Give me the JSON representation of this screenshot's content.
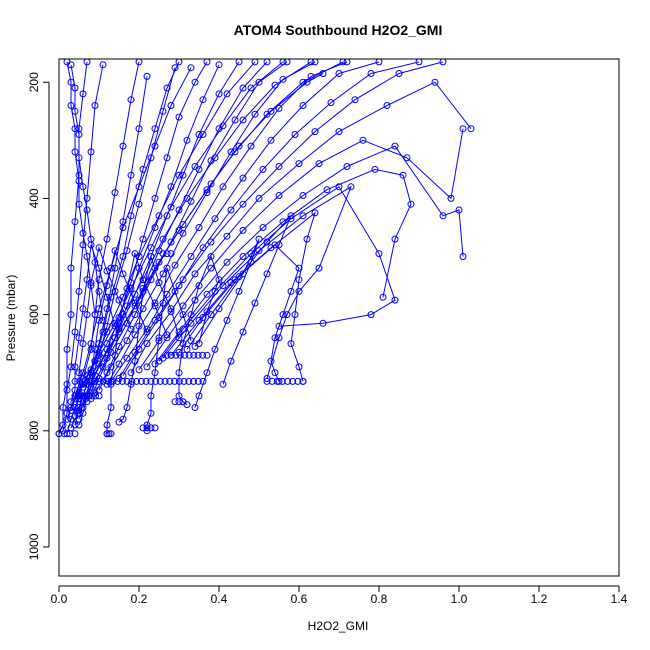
{
  "chart_data": {
    "type": "scatter",
    "title": "ATOM4 Southbound H2O2_GMI",
    "xlabel": "H2O2_GMI",
    "ylabel": "Pressure (mbar)",
    "xlim": [
      0,
      1.4
    ],
    "ylim": [
      1050,
      160
    ],
    "y_axis_inverted": true,
    "grid": false,
    "legend": "none",
    "x_ticks": [
      0.0,
      0.2,
      0.4,
      0.6,
      0.8,
      1.0,
      1.2,
      1.4
    ],
    "x_tick_labels": [
      "0.0",
      "0.2",
      "0.4",
      "0.6",
      "0.8",
      "1.0",
      "1.2",
      "1.4"
    ],
    "y_ticks": [
      200,
      400,
      600,
      800,
      1000
    ],
    "y_tick_labels": [
      "200",
      "400",
      "600",
      "800",
      "1000"
    ],
    "marker": "open-circle",
    "connect_points": true,
    "color": "#0000ff",
    "profiles": [
      {
        "x": [
          0.0,
          0.01,
          0.01,
          0.02,
          0.02,
          0.03,
          0.03,
          0.04,
          0.05,
          0.05,
          0.06,
          0.07
        ],
        "y": [
          805,
          790,
          760,
          720,
          660,
          600,
          520,
          440,
          360,
          280,
          220,
          165
        ]
      },
      {
        "x": [
          0.01,
          0.02,
          0.02,
          0.03,
          0.04,
          0.05,
          0.06,
          0.07,
          0.08,
          0.09,
          0.11
        ],
        "y": [
          800,
          770,
          730,
          690,
          630,
          560,
          480,
          400,
          320,
          240,
          170
        ]
      },
      {
        "x": [
          0.02,
          0.03,
          0.05,
          0.06,
          0.08,
          0.09,
          0.1,
          0.12,
          0.14,
          0.16,
          0.18,
          0.2
        ],
        "y": [
          805,
          780,
          745,
          710,
          660,
          600,
          540,
          470,
          390,
          310,
          230,
          165
        ]
      },
      {
        "x": [
          0.03,
          0.05,
          0.06,
          0.08,
          0.1,
          0.12,
          0.14,
          0.16,
          0.18,
          0.2,
          0.22
        ],
        "y": [
          795,
          765,
          740,
          700,
          650,
          590,
          520,
          440,
          360,
          280,
          190
        ]
      },
      {
        "x": [
          0.04,
          0.05,
          0.07,
          0.09,
          0.11,
          0.13,
          0.16,
          0.18,
          0.21,
          0.24,
          0.27,
          0.3
        ],
        "y": [
          790,
          760,
          720,
          680,
          630,
          570,
          500,
          430,
          350,
          280,
          210,
          165
        ]
      },
      {
        "x": [
          0.05,
          0.06,
          0.08,
          0.1,
          0.12,
          0.14,
          0.17,
          0.2,
          0.23,
          0.26,
          0.29
        ],
        "y": [
          780,
          750,
          715,
          670,
          620,
          560,
          490,
          410,
          330,
          250,
          175
        ]
      },
      {
        "x": [
          0.05,
          0.07,
          0.09,
          0.12,
          0.15,
          0.18,
          0.21,
          0.24,
          0.27,
          0.3,
          0.34,
          0.37
        ],
        "y": [
          770,
          740,
          705,
          660,
          605,
          545,
          470,
          400,
          330,
          260,
          200,
          165
        ]
      },
      {
        "x": [
          0.06,
          0.08,
          0.11,
          0.14,
          0.17,
          0.2,
          0.24,
          0.28,
          0.32,
          0.36,
          0.4
        ],
        "y": [
          760,
          725,
          690,
          640,
          585,
          520,
          450,
          380,
          300,
          230,
          170
        ]
      },
      {
        "x": [
          0.07,
          0.09,
          0.12,
          0.15,
          0.19,
          0.23,
          0.27,
          0.31,
          0.35,
          0.4,
          0.45
        ],
        "y": [
          750,
          715,
          675,
          625,
          565,
          500,
          430,
          360,
          290,
          220,
          165
        ]
      },
      {
        "x": [
          0.08,
          0.1,
          0.13,
          0.17,
          0.21,
          0.25,
          0.3,
          0.35,
          0.4,
          0.46,
          0.52
        ],
        "y": [
          745,
          710,
          665,
          615,
          555,
          490,
          420,
          350,
          280,
          210,
          165
        ]
      },
      {
        "x": [
          0.09,
          0.12,
          0.15,
          0.19,
          0.23,
          0.28,
          0.33,
          0.38,
          0.44,
          0.5,
          0.57
        ],
        "y": [
          735,
          700,
          655,
          600,
          540,
          475,
          405,
          335,
          265,
          200,
          165
        ]
      },
      {
        "x": [
          0.1,
          0.13,
          0.17,
          0.21,
          0.26,
          0.31,
          0.37,
          0.43,
          0.49,
          0.56,
          0.64
        ],
        "y": [
          730,
          690,
          645,
          590,
          530,
          460,
          390,
          320,
          255,
          195,
          165
        ]
      },
      {
        "x": [
          0.12,
          0.15,
          0.19,
          0.24,
          0.29,
          0.35,
          0.41,
          0.48,
          0.55,
          0.63,
          0.72
        ],
        "y": [
          720,
          685,
          635,
          580,
          515,
          450,
          380,
          310,
          245,
          190,
          165
        ]
      },
      {
        "x": [
          0.13,
          0.17,
          0.22,
          0.27,
          0.33,
          0.39,
          0.46,
          0.53,
          0.61,
          0.7,
          0.8
        ],
        "y": [
          715,
          675,
          625,
          565,
          500,
          435,
          365,
          300,
          240,
          185,
          165
        ]
      },
      {
        "x": [
          0.15,
          0.19,
          0.24,
          0.3,
          0.36,
          0.43,
          0.51,
          0.59,
          0.68,
          0.78,
          0.9
        ],
        "y": [
          710,
          665,
          610,
          550,
          485,
          420,
          350,
          290,
          235,
          185,
          165
        ]
      },
      {
        "x": [
          0.16,
          0.2,
          0.25,
          0.31,
          0.38,
          0.46,
          0.55,
          0.64,
          0.74,
          0.85,
          0.96
        ],
        "y": [
          705,
          660,
          605,
          540,
          475,
          410,
          345,
          285,
          230,
          185,
          165
        ]
      },
      {
        "x": [
          0.18,
          0.22,
          0.28,
          0.34,
          0.42,
          0.5,
          0.6,
          0.7,
          0.82,
          0.94,
          1.03
        ],
        "y": [
          700,
          650,
          595,
          530,
          465,
          400,
          340,
          285,
          240,
          200,
          280
        ]
      },
      {
        "x": [
          0.2,
          0.25,
          0.31,
          0.38,
          0.46,
          0.55,
          0.65,
          0.76,
          0.87,
          0.98,
          1.01
        ],
        "y": [
          695,
          645,
          585,
          520,
          455,
          395,
          340,
          300,
          330,
          400,
          280
        ]
      },
      {
        "x": [
          0.22,
          0.27,
          0.34,
          0.42,
          0.51,
          0.61,
          0.72,
          0.84,
          0.96,
          1.0,
          1.01
        ],
        "y": [
          690,
          640,
          575,
          510,
          450,
          395,
          345,
          310,
          430,
          420,
          500
        ]
      },
      {
        "x": [
          0.24,
          0.3,
          0.37,
          0.46,
          0.56,
          0.67,
          0.79,
          0.86,
          0.88,
          0.84,
          0.81
        ],
        "y": [
          685,
          630,
          565,
          500,
          440,
          385,
          350,
          360,
          410,
          470,
          570
        ]
      },
      {
        "x": [
          0.25,
          0.31,
          0.39,
          0.48,
          0.58,
          0.7,
          0.8,
          0.84,
          0.78,
          0.66,
          0.55
        ],
        "y": [
          680,
          625,
          560,
          495,
          435,
          380,
          495,
          575,
          600,
          615,
          620
        ]
      },
      {
        "x": [
          0.26,
          0.33,
          0.41,
          0.5,
          0.61,
          0.73,
          0.65,
          0.6,
          0.57,
          0.55,
          0.52
        ],
        "y": [
          675,
          615,
          550,
          490,
          430,
          380,
          520,
          560,
          600,
          640,
          710
        ]
      },
      {
        "x": [
          0.28,
          0.35,
          0.43,
          0.53,
          0.64,
          0.62,
          0.6,
          0.59,
          0.58,
          0.6,
          0.61
        ],
        "y": [
          670,
          610,
          545,
          485,
          425,
          470,
          540,
          600,
          650,
          690,
          715
        ]
      },
      {
        "x": [
          0.3,
          0.36,
          0.44,
          0.54,
          0.6,
          0.58,
          0.56,
          0.54,
          0.53,
          0.54,
          0.55
        ],
        "y": [
          665,
          605,
          540,
          480,
          520,
          560,
          600,
          640,
          680,
          700,
          715
        ]
      },
      {
        "x": [
          0.32,
          0.38,
          0.45,
          0.52,
          0.58,
          0.55,
          0.52,
          0.49,
          0.46,
          0.43,
          0.41
        ],
        "y": [
          660,
          600,
          535,
          475,
          430,
          480,
          530,
          580,
          630,
          680,
          720
        ]
      },
      {
        "x": [
          0.34,
          0.4,
          0.46,
          0.5,
          0.48,
          0.45,
          0.42,
          0.39,
          0.37,
          0.35,
          0.34
        ],
        "y": [
          655,
          590,
          530,
          470,
          510,
          560,
          610,
          660,
          700,
          740,
          760
        ]
      },
      {
        "x": [
          0.35,
          0.37,
          0.4,
          0.38,
          0.35,
          0.33,
          0.31,
          0.3,
          0.3,
          0.31,
          0.32
        ],
        "y": [
          650,
          595,
          540,
          500,
          550,
          600,
          650,
          700,
          740,
          750,
          755
        ]
      },
      {
        "x": [
          0.33,
          0.31,
          0.29,
          0.27,
          0.26,
          0.25,
          0.24,
          0.23,
          0.23,
          0.22,
          0.22
        ],
        "y": [
          645,
          600,
          560,
          520,
          580,
          640,
          700,
          740,
          770,
          790,
          800
        ]
      },
      {
        "x": [
          0.3,
          0.28,
          0.25,
          0.23,
          0.21,
          0.2,
          0.19,
          0.18,
          0.17,
          0.16,
          0.15
        ],
        "y": [
          640,
          590,
          545,
          500,
          560,
          620,
          680,
          720,
          760,
          780,
          785
        ]
      },
      {
        "x": [
          0.27,
          0.24,
          0.21,
          0.19,
          0.17,
          0.15,
          0.14,
          0.13,
          0.13,
          0.12,
          0.12
        ],
        "y": [
          635,
          585,
          540,
          495,
          555,
          615,
          670,
          720,
          760,
          790,
          805
        ]
      },
      {
        "x": [
          0.22,
          0.19,
          0.16,
          0.14,
          0.12,
          0.1,
          0.09,
          0.08,
          0.07,
          0.06,
          0.05
        ],
        "y": [
          630,
          580,
          530,
          490,
          550,
          610,
          660,
          700,
          740,
          770,
          790
        ]
      },
      {
        "x": [
          0.18,
          0.15,
          0.12,
          0.1,
          0.08,
          0.07,
          0.06,
          0.05,
          0.05,
          0.04,
          0.04
        ],
        "y": [
          625,
          575,
          525,
          485,
          545,
          600,
          650,
          700,
          740,
          760,
          775
        ]
      },
      {
        "x": [
          0.14,
          0.12,
          0.1,
          0.08,
          0.07,
          0.06,
          0.05,
          0.04,
          0.04,
          0.03,
          0.03
        ],
        "y": [
          620,
          570,
          520,
          480,
          540,
          590,
          640,
          690,
          730,
          750,
          765
        ]
      },
      {
        "x": [
          0.11,
          0.1,
          0.09,
          0.08,
          0.07,
          0.06,
          0.05,
          0.05,
          0.04,
          0.04,
          0.03
        ],
        "y": [
          610,
          560,
          510,
          470,
          420,
          380,
          330,
          290,
          250,
          210,
          170
        ]
      },
      {
        "x": [
          0.09,
          0.08,
          0.07,
          0.06,
          0.05,
          0.05,
          0.04,
          0.04,
          0.03,
          0.03,
          0.02
        ],
        "y": [
          600,
          550,
          500,
          460,
          410,
          370,
          320,
          280,
          240,
          200,
          165
        ]
      },
      {
        "x": [
          0.02,
          0.04,
          0.06,
          0.08,
          0.1,
          0.13,
          0.16,
          0.2,
          0.24,
          0.28,
          0.33
        ],
        "y": [
          780,
          740,
          700,
          650,
          590,
          520,
          450,
          380,
          310,
          240,
          175
        ]
      },
      {
        "x": [
          0.03,
          0.06,
          0.09,
          0.12,
          0.16,
          0.2,
          0.25,
          0.3,
          0.36,
          0.42,
          0.49
        ],
        "y": [
          760,
          720,
          680,
          630,
          570,
          500,
          430,
          360,
          290,
          220,
          165
        ]
      },
      {
        "x": [
          0.04,
          0.07,
          0.1,
          0.14,
          0.18,
          0.23,
          0.28,
          0.34,
          0.41,
          0.48,
          0.56
        ],
        "y": [
          745,
          705,
          665,
          615,
          555,
          485,
          415,
          345,
          275,
          210,
          165
        ]
      },
      {
        "x": [
          0.05,
          0.08,
          0.12,
          0.16,
          0.21,
          0.26,
          0.32,
          0.39,
          0.46,
          0.54,
          0.63
        ],
        "y": [
          735,
          695,
          650,
          600,
          540,
          470,
          400,
          330,
          265,
          205,
          165
        ]
      },
      {
        "x": [
          0.06,
          0.1,
          0.14,
          0.19,
          0.24,
          0.3,
          0.37,
          0.44,
          0.52,
          0.61,
          0.71
        ],
        "y": [
          725,
          685,
          640,
          585,
          520,
          455,
          385,
          320,
          255,
          200,
          165
        ]
      },
      {
        "x": [
          0.08,
          0.11,
          0.15,
          0.2,
          0.25,
          0.31,
          0.38,
          0.45,
          0.53,
          0.62,
          0.66
        ],
        "y": [
          715,
          675,
          630,
          575,
          510,
          445,
          375,
          310,
          250,
          200,
          185
        ]
      }
    ],
    "clusters": [
      {
        "y": 715,
        "x_start": 0.04,
        "x_end": 0.36,
        "count": 28
      },
      {
        "y": 670,
        "x_start": 0.27,
        "x_end": 0.37,
        "count": 10
      },
      {
        "y": 740,
        "x_start": 0.04,
        "x_end": 0.1,
        "count": 8
      },
      {
        "y": 750,
        "x_start": 0.29,
        "x_end": 0.31,
        "count": 3
      },
      {
        "y": 715,
        "x_start": 0.52,
        "x_end": 0.61,
        "count": 8
      },
      {
        "y": 795,
        "x_start": 0.21,
        "x_end": 0.24,
        "count": 4
      },
      {
        "y": 805,
        "x_start": 0.0,
        "x_end": 0.04,
        "count": 4
      },
      {
        "y": 805,
        "x_start": 0.12,
        "x_end": 0.13,
        "count": 3
      },
      {
        "y": 495,
        "x_start": 0.26,
        "x_end": 0.28,
        "count": 3
      }
    ]
  }
}
